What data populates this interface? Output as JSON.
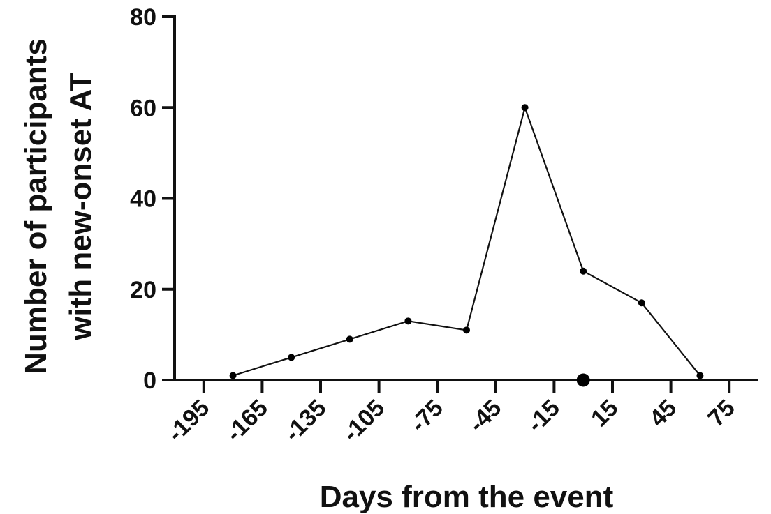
{
  "chart_data": {
    "type": "line",
    "xlabel": "Days from the event",
    "ylabel_lines": [
      "Number of participants",
      "with new-onset AT"
    ],
    "x_ticks": [
      -195,
      -165,
      -135,
      -105,
      -75,
      -45,
      -15,
      15,
      45,
      75
    ],
    "x_tick_labels": [
      "-195",
      "-165",
      "-135",
      "-105",
      "-75",
      "-45",
      "-15",
      "15",
      "45",
      "75"
    ],
    "y_ticks": [
      0,
      20,
      40,
      60,
      80
    ],
    "y_tick_labels": [
      "0",
      "20",
      "40",
      "60",
      "80"
    ],
    "xlim": [
      -210,
      90
    ],
    "ylim": [
      0,
      80
    ],
    "grid": false,
    "series": [
      {
        "x": [
          -180,
          -150,
          -120,
          -90,
          -60,
          -30,
          0,
          30,
          60
        ],
        "y": [
          1,
          5,
          9,
          13,
          11,
          60,
          24,
          17,
          1
        ]
      }
    ],
    "event_marker": {
      "x": 0,
      "y": 0
    },
    "colors": {
      "line": "#111111",
      "marker": "#000000"
    }
  }
}
